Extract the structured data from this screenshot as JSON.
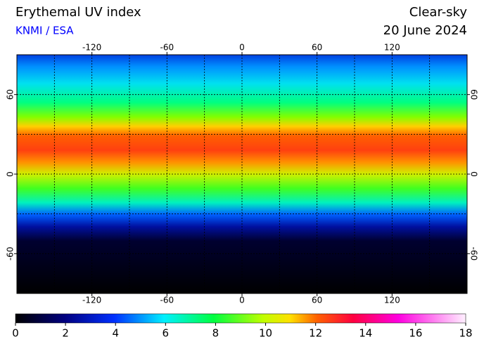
{
  "header": {
    "title": "Erythemal UV index",
    "source": "KNMI / ESA",
    "condition": "Clear-sky",
    "date": "20 June 2024"
  },
  "map": {
    "lon_range": [
      -180,
      180
    ],
    "lat_range": [
      -90,
      90
    ],
    "lon_ticks": [
      -120,
      -60,
      0,
      60,
      120
    ],
    "lat_ticks": [
      -60,
      0,
      60
    ]
  },
  "colorbar": {
    "range": [
      0,
      18
    ],
    "ticks": [
      0,
      2,
      4,
      6,
      8,
      10,
      12,
      14,
      16,
      18
    ]
  }
}
